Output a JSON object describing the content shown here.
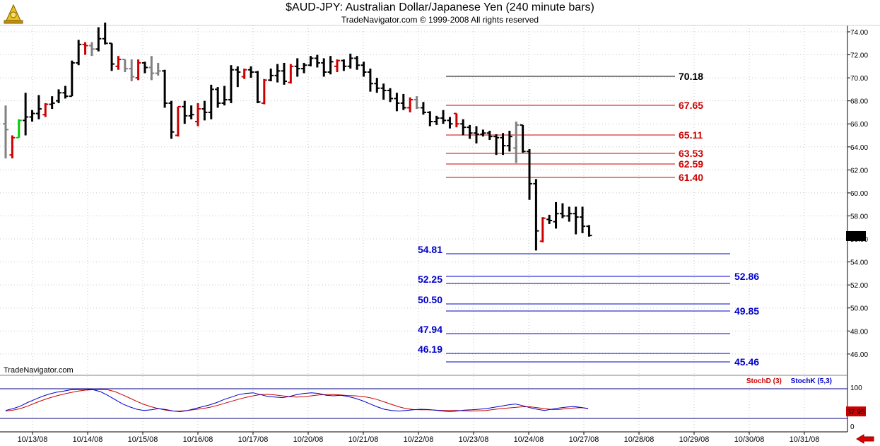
{
  "header": {
    "title": "$AUD-JPY:  Australian Dollar/Japanese Yen  (240 minute bars)",
    "subtitle": "TradeNavigator.com © 1999-2008 All rights reserved"
  },
  "watermark": "TradeNavigator.com",
  "colors": {
    "up": "#cc0000",
    "down": "#000000",
    "flat": "#808080",
    "highlight": "#00cc00",
    "resistance": "#cc0000",
    "support": "#0000cc",
    "stochD": "#cc0000",
    "stochK": "#0000cc"
  },
  "indicator": {
    "stochD_label": "StochD (3)",
    "stochK_label": "StochK (5,3)",
    "last_value": "37.95",
    "top_label": "100",
    "bottom_label": "0"
  },
  "chart_data": {
    "type": "ohlc",
    "title": "$AUD-JPY:  Australian Dollar/Japanese Yen  (240 minute bars)",
    "ylim": [
      44.5,
      75
    ],
    "y_ticks": [
      "74.00",
      "72.00",
      "70.00",
      "68.00",
      "66.00",
      "64.00",
      "62.00",
      "60.00",
      "58.00",
      "56.00",
      "54.00",
      "52.00",
      "50.00",
      "48.00",
      "46.00"
    ],
    "x_ticks": [
      "10/13/08",
      "10/14/08",
      "10/15/08",
      "10/16/08",
      "10/17/08",
      "10/20/08",
      "10/21/08",
      "10/22/08",
      "10/23/08",
      "10/24/08",
      "10/27/08",
      "10/28/08",
      "10/29/08",
      "10/30/08",
      "10/31/08"
    ],
    "last_price": "56.25",
    "bars": [
      {
        "o": 66.0,
        "h": 67.6,
        "l": 63.0,
        "c": 65.5,
        "col": "flat"
      },
      {
        "o": 63.3,
        "h": 65.0,
        "l": 63.0,
        "c": 64.8,
        "col": "up"
      },
      {
        "o": 64.8,
        "h": 66.4,
        "l": 64.8,
        "c": 66.3,
        "col": "highlight"
      },
      {
        "o": 66.3,
        "h": 68.7,
        "l": 65.0,
        "c": 66.6,
        "col": "down"
      },
      {
        "o": 66.6,
        "h": 67.2,
        "l": 66.2,
        "c": 66.9,
        "col": "down"
      },
      {
        "o": 66.9,
        "h": 68.5,
        "l": 66.4,
        "c": 67.3,
        "col": "down"
      },
      {
        "o": 66.8,
        "h": 67.8,
        "l": 66.6,
        "c": 67.7,
        "col": "up"
      },
      {
        "o": 67.7,
        "h": 68.4,
        "l": 67.3,
        "c": 67.8,
        "col": "down"
      },
      {
        "o": 68.0,
        "h": 69.0,
        "l": 67.8,
        "c": 68.7,
        "col": "down"
      },
      {
        "o": 68.7,
        "h": 69.3,
        "l": 68.2,
        "c": 68.4,
        "col": "down"
      },
      {
        "o": 68.4,
        "h": 71.5,
        "l": 68.4,
        "c": 71.3,
        "col": "down"
      },
      {
        "o": 71.3,
        "h": 73.3,
        "l": 71.1,
        "c": 72.9,
        "col": "down"
      },
      {
        "o": 72.9,
        "h": 73.1,
        "l": 72.0,
        "c": 72.8,
        "col": "up"
      },
      {
        "o": 72.8,
        "h": 73.1,
        "l": 71.9,
        "c": 72.5,
        "col": "flat"
      },
      {
        "o": 72.5,
        "h": 74.4,
        "l": 72.3,
        "c": 73.4,
        "col": "down"
      },
      {
        "o": 73.4,
        "h": 74.8,
        "l": 72.9,
        "c": 73.0,
        "col": "down"
      },
      {
        "o": 73.0,
        "h": 73.0,
        "l": 70.6,
        "c": 71.2,
        "col": "down"
      },
      {
        "o": 71.0,
        "h": 71.9,
        "l": 70.7,
        "c": 71.6,
        "col": "up"
      },
      {
        "o": 71.6,
        "h": 71.6,
        "l": 70.5,
        "c": 70.8,
        "col": "flat"
      },
      {
        "o": 70.8,
        "h": 71.6,
        "l": 69.7,
        "c": 70.1,
        "col": "flat"
      },
      {
        "o": 70.0,
        "h": 71.6,
        "l": 69.8,
        "c": 71.3,
        "col": "up"
      },
      {
        "o": 71.3,
        "h": 71.4,
        "l": 70.4,
        "c": 70.9,
        "col": "down"
      },
      {
        "o": 70.9,
        "h": 71.9,
        "l": 69.8,
        "c": 70.4,
        "col": "flat"
      },
      {
        "o": 70.4,
        "h": 71.3,
        "l": 70.2,
        "c": 70.6,
        "col": "flat"
      },
      {
        "o": 70.6,
        "h": 70.7,
        "l": 67.4,
        "c": 67.8,
        "col": "down"
      },
      {
        "o": 67.8,
        "h": 68.0,
        "l": 64.7,
        "c": 65.3,
        "col": "down"
      },
      {
        "o": 65.0,
        "h": 67.5,
        "l": 64.9,
        "c": 67.5,
        "col": "up"
      },
      {
        "o": 67.5,
        "h": 68.0,
        "l": 66.0,
        "c": 66.7,
        "col": "down"
      },
      {
        "o": 66.7,
        "h": 67.6,
        "l": 66.4,
        "c": 66.8,
        "col": "down"
      },
      {
        "o": 66.2,
        "h": 67.8,
        "l": 65.8,
        "c": 67.3,
        "col": "up"
      },
      {
        "o": 67.3,
        "h": 68.0,
        "l": 66.3,
        "c": 67.0,
        "col": "down"
      },
      {
        "o": 67.0,
        "h": 69.4,
        "l": 66.4,
        "c": 69.0,
        "col": "down"
      },
      {
        "o": 69.0,
        "h": 69.2,
        "l": 67.4,
        "c": 67.8,
        "col": "down"
      },
      {
        "o": 67.8,
        "h": 69.3,
        "l": 67.6,
        "c": 68.1,
        "col": "down"
      },
      {
        "o": 68.1,
        "h": 71.1,
        "l": 67.8,
        "c": 70.7,
        "col": "down"
      },
      {
        "o": 70.7,
        "h": 71.0,
        "l": 69.2,
        "c": 70.5,
        "col": "down"
      },
      {
        "o": 70.1,
        "h": 70.8,
        "l": 69.9,
        "c": 70.7,
        "col": "up"
      },
      {
        "o": 70.7,
        "h": 71.0,
        "l": 70.0,
        "c": 70.5,
        "col": "down"
      },
      {
        "o": 70.5,
        "h": 70.6,
        "l": 67.8,
        "c": 67.9,
        "col": "down"
      },
      {
        "o": 67.8,
        "h": 69.9,
        "l": 67.7,
        "c": 69.8,
        "col": "up"
      },
      {
        "o": 69.8,
        "h": 70.8,
        "l": 69.7,
        "c": 70.2,
        "col": "down"
      },
      {
        "o": 70.2,
        "h": 71.2,
        "l": 69.6,
        "c": 70.6,
        "col": "down"
      },
      {
        "o": 70.6,
        "h": 71.3,
        "l": 69.4,
        "c": 69.7,
        "col": "down"
      },
      {
        "o": 69.6,
        "h": 71.2,
        "l": 69.5,
        "c": 71.0,
        "col": "up"
      },
      {
        "o": 71.0,
        "h": 71.7,
        "l": 70.1,
        "c": 70.8,
        "col": "down"
      },
      {
        "o": 70.8,
        "h": 71.3,
        "l": 70.4,
        "c": 71.1,
        "col": "down"
      },
      {
        "o": 71.1,
        "h": 71.9,
        "l": 71.0,
        "c": 71.7,
        "col": "down"
      },
      {
        "o": 71.7,
        "h": 72.0,
        "l": 70.9,
        "c": 71.3,
        "col": "down"
      },
      {
        "o": 71.3,
        "h": 71.7,
        "l": 70.1,
        "c": 70.5,
        "col": "down"
      },
      {
        "o": 70.5,
        "h": 71.9,
        "l": 70.3,
        "c": 71.4,
        "col": "down"
      },
      {
        "o": 71.0,
        "h": 71.6,
        "l": 70.5,
        "c": 71.5,
        "col": "up"
      },
      {
        "o": 71.5,
        "h": 71.6,
        "l": 70.6,
        "c": 71.0,
        "col": "down"
      },
      {
        "o": 71.0,
        "h": 72.1,
        "l": 70.8,
        "c": 71.7,
        "col": "down"
      },
      {
        "o": 71.7,
        "h": 71.9,
        "l": 70.7,
        "c": 71.1,
        "col": "down"
      },
      {
        "o": 71.1,
        "h": 71.4,
        "l": 70.1,
        "c": 70.5,
        "col": "down"
      },
      {
        "o": 70.5,
        "h": 70.8,
        "l": 68.8,
        "c": 69.5,
        "col": "down"
      },
      {
        "o": 69.5,
        "h": 70.0,
        "l": 68.7,
        "c": 69.1,
        "col": "down"
      },
      {
        "o": 69.1,
        "h": 69.5,
        "l": 68.1,
        "c": 68.9,
        "col": "down"
      },
      {
        "o": 68.9,
        "h": 69.1,
        "l": 67.9,
        "c": 68.2,
        "col": "down"
      },
      {
        "o": 68.2,
        "h": 68.7,
        "l": 67.1,
        "c": 67.8,
        "col": "down"
      },
      {
        "o": 67.8,
        "h": 68.6,
        "l": 67.2,
        "c": 67.4,
        "col": "down"
      },
      {
        "o": 67.4,
        "h": 68.3,
        "l": 67.0,
        "c": 68.1,
        "col": "up"
      },
      {
        "o": 68.1,
        "h": 68.4,
        "l": 67.3,
        "c": 67.4,
        "col": "flat"
      },
      {
        "o": 67.4,
        "h": 67.9,
        "l": 66.8,
        "c": 67.0,
        "col": "down"
      },
      {
        "o": 67.0,
        "h": 67.1,
        "l": 65.8,
        "c": 66.2,
        "col": "down"
      },
      {
        "o": 66.2,
        "h": 66.7,
        "l": 65.9,
        "c": 66.5,
        "col": "down"
      },
      {
        "o": 66.5,
        "h": 67.2,
        "l": 66.0,
        "c": 66.3,
        "col": "down"
      },
      {
        "o": 66.3,
        "h": 66.6,
        "l": 65.6,
        "c": 66.0,
        "col": "down"
      },
      {
        "o": 66.9,
        "h": 66.9,
        "l": 65.7,
        "c": 66.0,
        "col": "up"
      },
      {
        "o": 66.0,
        "h": 66.4,
        "l": 65.0,
        "c": 65.7,
        "col": "down"
      },
      {
        "o": 65.7,
        "h": 65.9,
        "l": 64.7,
        "c": 65.2,
        "col": "down"
      },
      {
        "o": 65.2,
        "h": 65.8,
        "l": 64.3,
        "c": 65.1,
        "col": "down"
      },
      {
        "o": 65.1,
        "h": 65.5,
        "l": 64.9,
        "c": 65.2,
        "col": "down"
      },
      {
        "o": 65.2,
        "h": 65.4,
        "l": 64.6,
        "c": 64.9,
        "col": "down"
      },
      {
        "o": 64.9,
        "h": 65.1,
        "l": 63.3,
        "c": 64.8,
        "col": "down"
      },
      {
        "o": 64.8,
        "h": 65.2,
        "l": 63.3,
        "c": 64.1,
        "col": "down"
      },
      {
        "o": 64.1,
        "h": 65.4,
        "l": 63.6,
        "c": 64.9,
        "col": "down"
      },
      {
        "o": 63.9,
        "h": 66.2,
        "l": 62.6,
        "c": 65.9,
        "col": "flat"
      },
      {
        "o": 65.9,
        "h": 65.9,
        "l": 63.5,
        "c": 63.6,
        "col": "down"
      },
      {
        "o": 63.6,
        "h": 63.8,
        "l": 59.4,
        "c": 60.8,
        "col": "down"
      },
      {
        "o": 60.8,
        "h": 61.2,
        "l": 55.0,
        "c": 56.7,
        "col": "down"
      },
      {
        "o": 55.8,
        "h": 57.9,
        "l": 55.7,
        "c": 57.8,
        "col": "up"
      },
      {
        "o": 57.7,
        "h": 58.1,
        "l": 57.3,
        "c": 57.6,
        "col": "down"
      },
      {
        "o": 57.5,
        "h": 59.2,
        "l": 56.9,
        "c": 58.2,
        "col": "down"
      },
      {
        "o": 58.2,
        "h": 59.1,
        "l": 57.8,
        "c": 58.0,
        "col": "down"
      },
      {
        "o": 58.0,
        "h": 58.8,
        "l": 57.5,
        "c": 58.2,
        "col": "down"
      },
      {
        "o": 58.2,
        "h": 58.8,
        "l": 56.4,
        "c": 57.9,
        "col": "down"
      },
      {
        "o": 57.9,
        "h": 58.8,
        "l": 56.5,
        "c": 57.1,
        "col": "down"
      },
      {
        "o": 57.1,
        "h": 57.2,
        "l": 56.2,
        "c": 56.3,
        "col": "down"
      }
    ],
    "resistance_levels": [
      "70.18",
      "67.65",
      "65.11",
      "63.53",
      "62.59",
      "61.40"
    ],
    "support_levels": [
      "54.81",
      "52.86",
      "52.25",
      "50.50",
      "49.85",
      "47.94",
      "46.19",
      "45.46"
    ],
    "stochastic": {
      "ylim": [
        0,
        100
      ],
      "stochD": [
        22,
        25,
        30,
        38,
        48,
        57,
        65,
        72,
        78,
        83,
        88,
        91,
        92,
        93,
        92,
        86,
        76,
        65,
        54,
        44,
        36,
        30,
        25,
        22,
        22,
        24,
        27,
        30,
        34,
        40,
        47,
        54,
        61,
        67,
        72,
        76,
        77,
        75,
        72,
        69,
        68,
        69,
        72,
        75,
        76,
        76,
        75,
        73,
        72,
        70,
        66,
        60,
        52,
        44,
        36,
        30,
        27,
        26,
        26,
        25,
        24,
        24,
        24,
        23,
        22,
        23,
        24,
        27,
        30,
        32,
        34,
        36,
        36,
        33,
        30,
        27,
        27,
        30,
        32,
        33,
        31
      ],
      "stochK": [
        24,
        30,
        38,
        50,
        60,
        70,
        78,
        84,
        88,
        92,
        93,
        94,
        92,
        86,
        74,
        60,
        46,
        36,
        28,
        24,
        26,
        30,
        27,
        22,
        20,
        24,
        30,
        36,
        42,
        50,
        60,
        68,
        76,
        80,
        82,
        76,
        70,
        68,
        66,
        70,
        76,
        80,
        82,
        80,
        74,
        72,
        74,
        70,
        64,
        56,
        46,
        36,
        28,
        24,
        22,
        24,
        26,
        28,
        27,
        25,
        22,
        20,
        22,
        25,
        26,
        28,
        30,
        34,
        38,
        42,
        45,
        40,
        33,
        28,
        24,
        28,
        32,
        35,
        37,
        34,
        30
      ]
    }
  }
}
